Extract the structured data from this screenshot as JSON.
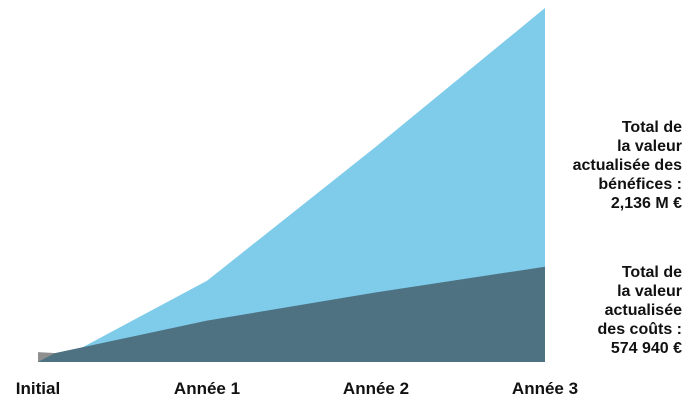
{
  "chart_data": {
    "type": "area",
    "categories": [
      "Initial",
      "Année 1",
      "Année 2",
      "Année 3"
    ],
    "series": [
      {
        "key": "benefits",
        "values": [
          0,
          0.49,
          1.3,
          2.136
        ],
        "color": "#7ecbea"
      },
      {
        "key": "costs",
        "values": [
          0.06,
          0.25,
          0.42,
          0.575
        ],
        "color": "#4e7282"
      }
    ],
    "ylim": [
      0,
      2.136
    ],
    "grid": false,
    "legend": "none",
    "annotations": {
      "benefits": [
        "Total de",
        "la valeur",
        "actualisée des",
        "bénéfices :",
        "2,136 M €"
      ],
      "costs": [
        "Total de",
        "la valeur",
        "actualisée",
        "des coûts :",
        "574 940 €"
      ]
    },
    "initial_marker_color": "#8f8f8f"
  }
}
